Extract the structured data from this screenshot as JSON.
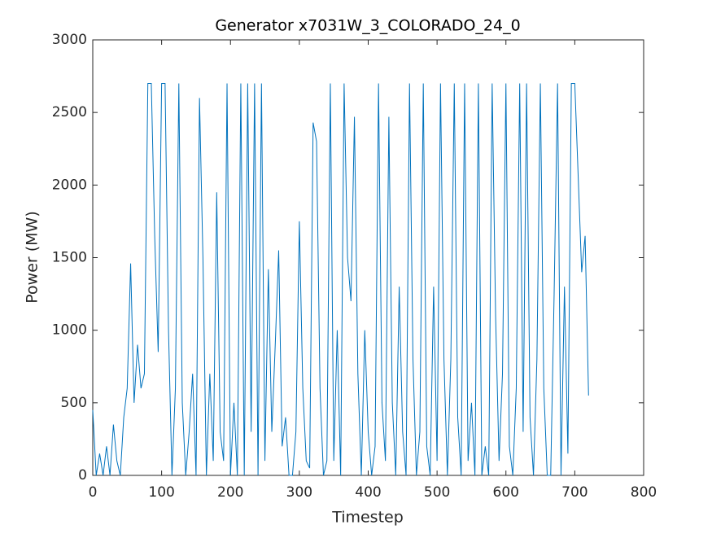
{
  "chart_data": {
    "type": "line",
    "title": "Generator x7031W_3_COLORADO_24_0",
    "x_label": "Timestep",
    "y_label": "Power (MW)",
    "x": [
      0,
      5,
      10,
      15,
      20,
      25,
      30,
      35,
      40,
      45,
      50,
      55,
      60,
      65,
      70,
      75,
      80,
      85,
      90,
      95,
      100,
      105,
      110,
      115,
      120,
      125,
      130,
      135,
      140,
      145,
      150,
      155,
      160,
      165,
      170,
      175,
      180,
      185,
      190,
      195,
      200,
      205,
      210,
      215,
      220,
      225,
      230,
      235,
      240,
      245,
      250,
      255,
      260,
      265,
      270,
      275,
      280,
      285,
      290,
      295,
      300,
      305,
      310,
      315,
      320,
      325,
      330,
      335,
      340,
      345,
      350,
      355,
      360,
      365,
      370,
      375,
      380,
      385,
      390,
      395,
      400,
      405,
      410,
      415,
      420,
      425,
      430,
      435,
      440,
      445,
      450,
      455,
      460,
      465,
      470,
      475,
      480,
      485,
      490,
      495,
      500,
      505,
      510,
      515,
      520,
      525,
      530,
      535,
      540,
      545,
      550,
      555,
      560,
      565,
      570,
      575,
      580,
      585,
      590,
      595,
      600,
      605,
      610,
      615,
      620,
      625,
      630,
      635,
      640,
      645,
      650,
      655,
      660,
      665,
      670,
      675,
      680,
      685,
      690,
      695,
      700,
      705,
      710,
      715,
      720
    ],
    "series": [
      {
        "name": "Power",
        "color": "#0072bd",
        "values": [
          450,
          0,
          150,
          0,
          200,
          0,
          350,
          100,
          0,
          400,
          600,
          1460,
          500,
          900,
          600,
          700,
          2700,
          2700,
          1640,
          850,
          2700,
          2700,
          1000,
          0,
          600,
          2700,
          500,
          0,
          300,
          700,
          0,
          2600,
          1500,
          0,
          700,
          100,
          1950,
          300,
          100,
          2700,
          0,
          500,
          0,
          2700,
          0,
          2700,
          300,
          2700,
          0,
          2700,
          100,
          1420,
          300,
          900,
          1550,
          200,
          400,
          0,
          0,
          300,
          1750,
          600,
          100,
          50,
          2430,
          2300,
          600,
          0,
          100,
          2700,
          100,
          1000,
          0,
          2700,
          1500,
          1200,
          2470,
          700,
          0,
          1000,
          300,
          0,
          200,
          2700,
          500,
          100,
          2470,
          500,
          0,
          1300,
          300,
          0,
          2700,
          800,
          0,
          300,
          2700,
          200,
          0,
          1300,
          100,
          2700,
          800,
          0,
          800,
          2700,
          400,
          0,
          2700,
          100,
          500,
          0,
          2700,
          0,
          200,
          0,
          2700,
          1100,
          100,
          700,
          2700,
          200,
          0,
          600,
          2700,
          300,
          2700,
          400,
          0,
          800,
          2700,
          600,
          0,
          0,
          1250,
          2700,
          0,
          1300,
          150,
          2700,
          2700,
          2050,
          1400,
          1650,
          550
        ]
      }
    ],
    "xlim": [
      0,
      800
    ],
    "xticks": [
      0,
      100,
      200,
      300,
      400,
      500,
      600,
      700,
      800
    ],
    "ylim": [
      0,
      3000
    ],
    "yticks": [
      0,
      500,
      1000,
      1500,
      2000,
      2500,
      3000
    ]
  }
}
